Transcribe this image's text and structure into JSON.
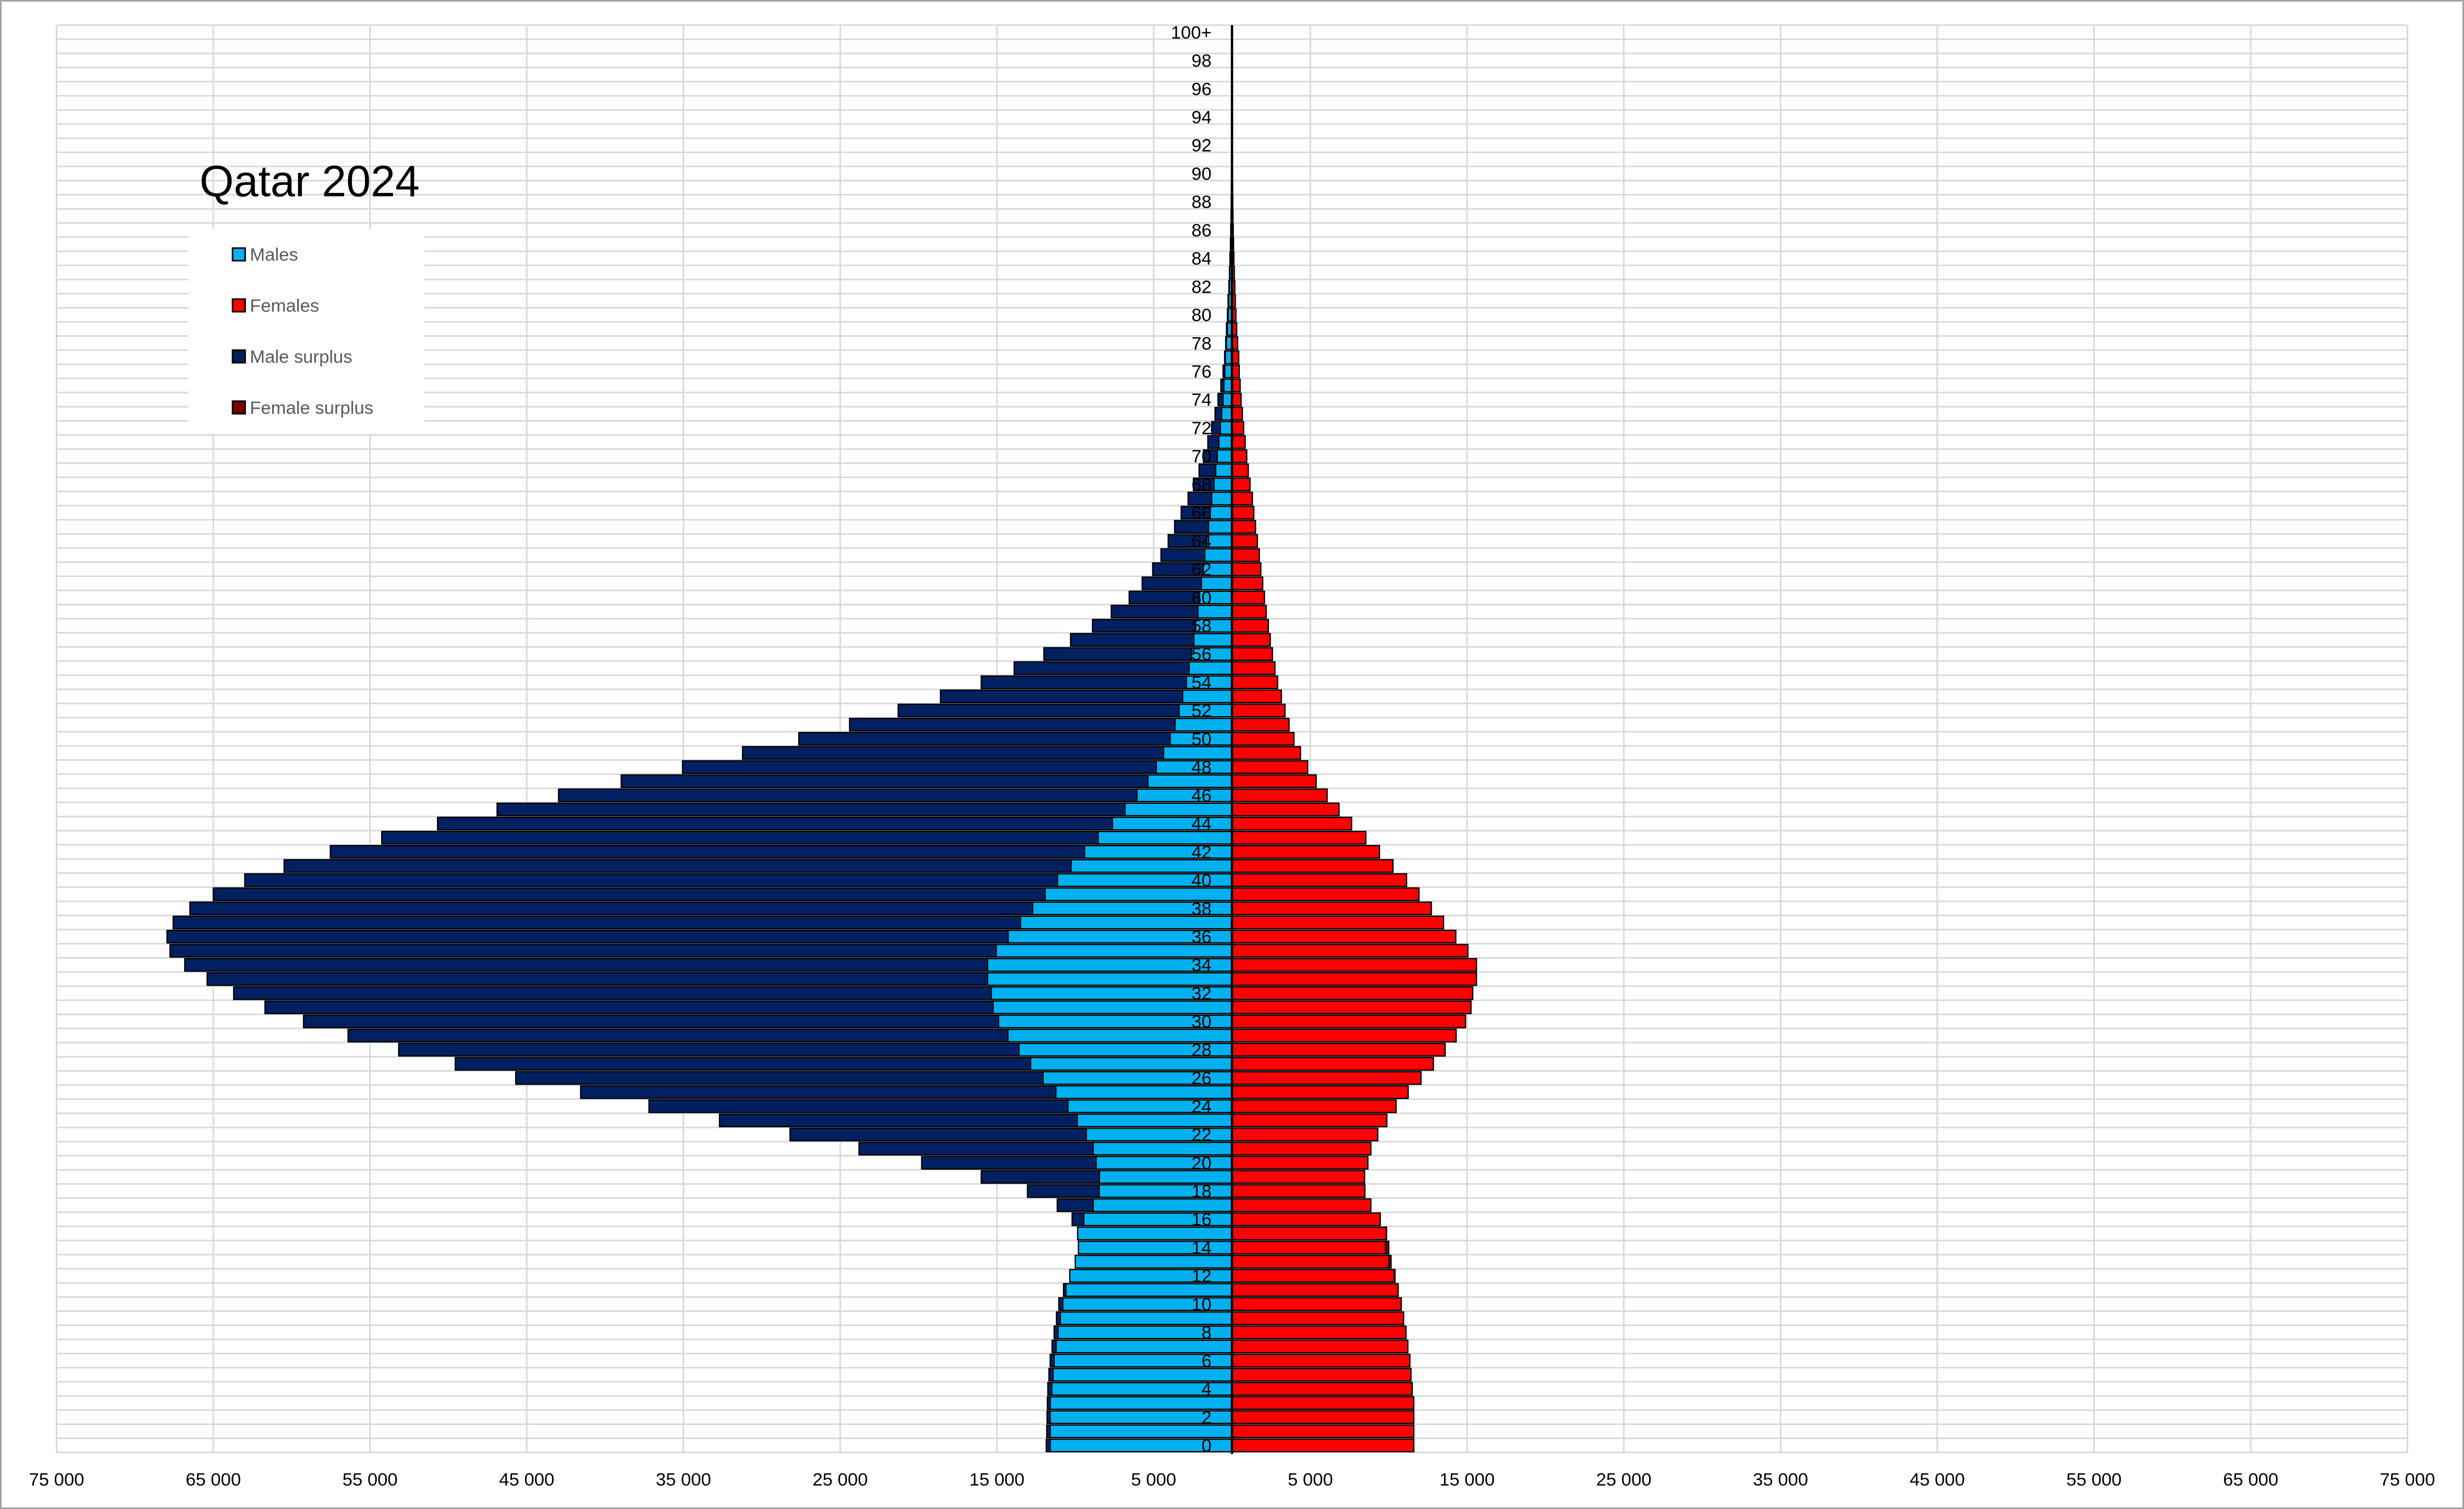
{
  "chart_data": {
    "type": "bar",
    "orientation": "horizontal-pyramid",
    "title": "Qatar 2024",
    "xlim": [
      -75000,
      75000
    ],
    "grid": true,
    "legend_placement": "top-left",
    "x_tick_labels": [
      "75 000",
      "65 000",
      "55 000",
      "45 000",
      "35 000",
      "25 000",
      "15 000",
      "5 000",
      "5 000",
      "15 000",
      "25 000",
      "35 000",
      "45 000",
      "55 000",
      "65 000",
      "75 000"
    ],
    "x_tick_values": [
      -75000,
      -65000,
      -55000,
      -45000,
      -35000,
      -25000,
      -15000,
      -5000,
      5000,
      15000,
      25000,
      35000,
      45000,
      55000,
      65000,
      75000
    ],
    "age_labels": [
      "0",
      "2",
      "4",
      "6",
      "8",
      "10",
      "12",
      "14",
      "16",
      "18",
      "20",
      "22",
      "24",
      "26",
      "28",
      "30",
      "32",
      "34",
      "36",
      "38",
      "40",
      "42",
      "44",
      "46",
      "48",
      "50",
      "52",
      "54",
      "56",
      "58",
      "60",
      "62",
      "64",
      "66",
      "68",
      "70",
      "72",
      "74",
      "76",
      "78",
      "80",
      "82",
      "84",
      "86",
      "88",
      "90",
      "92",
      "94",
      "96",
      "98",
      "100+"
    ],
    "legend": [
      {
        "label": "Males",
        "color": "#00b0f0"
      },
      {
        "label": "Females",
        "color": "#ff0000"
      },
      {
        "label": "Male surplus",
        "color": "#002060"
      },
      {
        "label": "Female surplus",
        "color": "#7b0000"
      }
    ],
    "series": [
      {
        "name": "Males",
        "values": [
          11850,
          11820,
          11800,
          11780,
          11750,
          11680,
          11600,
          11480,
          11350,
          11200,
          11050,
          10750,
          10350,
          10000,
          9800,
          9850,
          10200,
          11150,
          13050,
          16000,
          19800,
          23800,
          28200,
          32700,
          37200,
          41560,
          45700,
          49560,
          53170,
          56400,
          59240,
          61700,
          63700,
          65390,
          66820,
          67760,
          67950,
          67560,
          66490,
          65000,
          62990,
          60480,
          57530,
          54250,
          50690,
          46890,
          42970,
          38970,
          35060,
          31230,
          27640,
          24400,
          21300,
          18600,
          16000,
          13900,
          12000,
          10300,
          8900,
          7700,
          6560,
          5730,
          5060,
          4530,
          4070,
          3660,
          3240,
          2800,
          2460,
          2100,
          1820,
          1540,
          1300,
          1080,
          890,
          710,
          570,
          470,
          400,
          350,
          290,
          250,
          200,
          160,
          130,
          100,
          80,
          60,
          50,
          40,
          30,
          20,
          20,
          10,
          10,
          10,
          5,
          5,
          5,
          5,
          5
        ]
      },
      {
        "name": "Females",
        "values": [
          11600,
          11600,
          11600,
          11600,
          11500,
          11420,
          11350,
          11220,
          11100,
          10950,
          10800,
          10600,
          10400,
          10150,
          10000,
          9860,
          9460,
          8860,
          8480,
          8460,
          8670,
          8860,
          9300,
          9880,
          10470,
          11240,
          12060,
          12850,
          13600,
          14300,
          14900,
          15250,
          15360,
          15600,
          15600,
          15050,
          14280,
          13500,
          12720,
          11930,
          11140,
          10270,
          9410,
          8540,
          7630,
          6830,
          6070,
          5370,
          4830,
          4370,
          3950,
          3640,
          3380,
          3150,
          2910,
          2740,
          2580,
          2440,
          2320,
          2180,
          2070,
          1960,
          1840,
          1740,
          1620,
          1500,
          1390,
          1300,
          1150,
          1040,
          940,
          840,
          740,
          660,
          580,
          520,
          460,
          430,
          360,
          300,
          250,
          210,
          180,
          150,
          120,
          100,
          80,
          60,
          50,
          40,
          30,
          25,
          20,
          15,
          10,
          10,
          5,
          5,
          5,
          5,
          5
        ]
      }
    ]
  }
}
